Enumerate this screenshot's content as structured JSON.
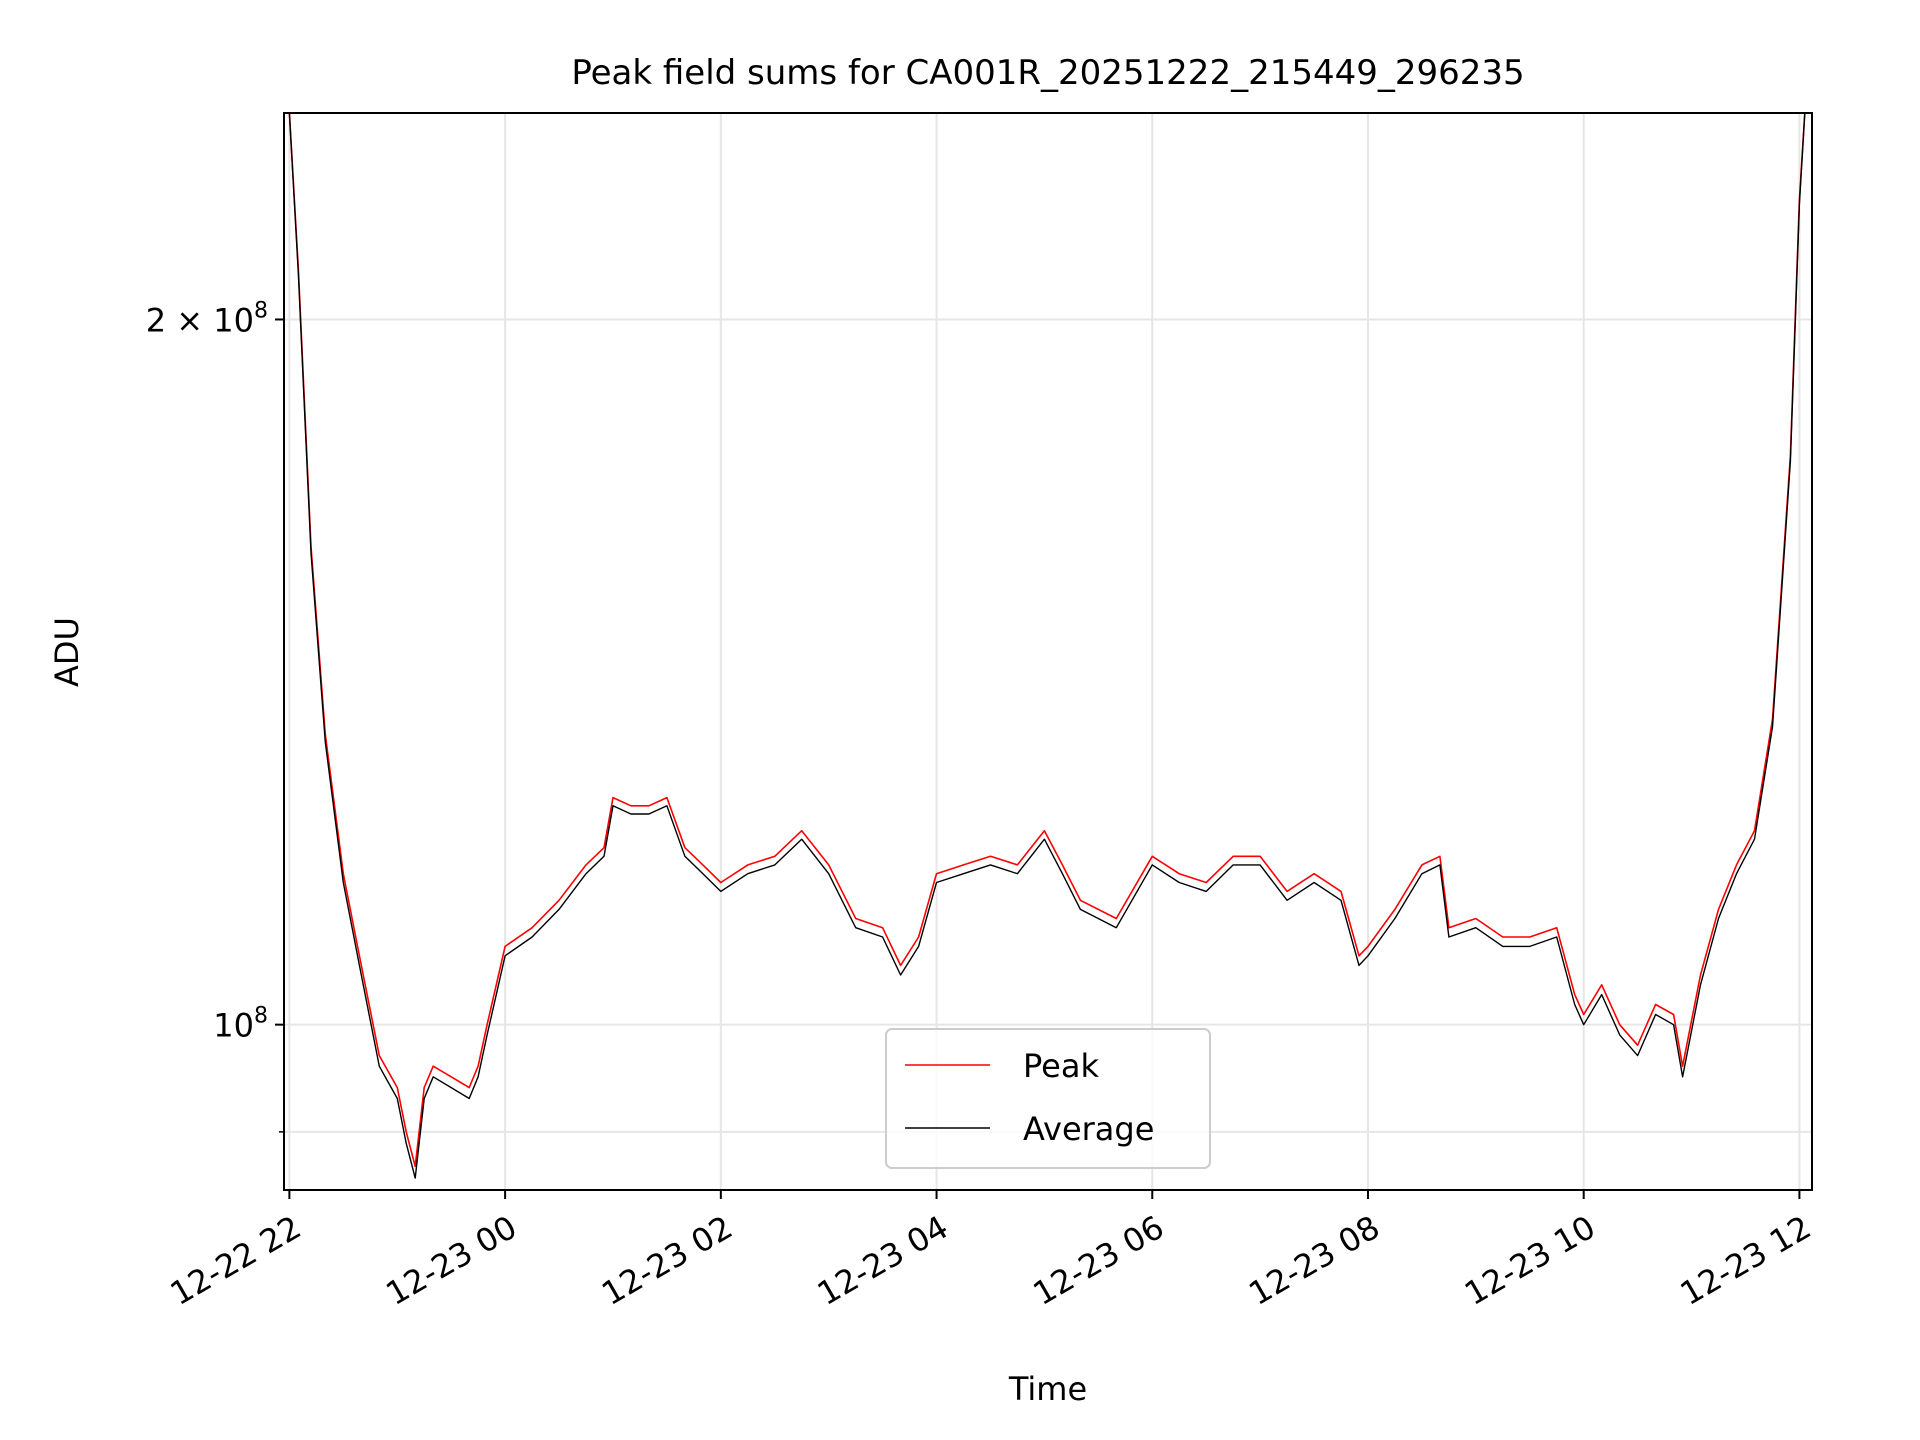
{
  "chart_data": {
    "type": "line",
    "title": "Peak field sums for CA001R_20251222_215449_296235",
    "xlabel": "Time",
    "ylabel": "ADU",
    "y_scale": "log",
    "ylim": [
      85000000,
      245000000
    ],
    "xlim": [
      "2025-12-22 21:57",
      "2025-12-23 12:07"
    ],
    "x_tick_labels": [
      "12-22 22",
      "12-23 00",
      "12-23 02",
      "12-23 04",
      "12-23 06",
      "12-23 08",
      "12-23 10",
      "12-23 12"
    ],
    "x_tick_values": [
      "2025-12-22 22:00",
      "2025-12-23 00:00",
      "2025-12-23 02:00",
      "2025-12-23 04:00",
      "2025-12-23 06:00",
      "2025-12-23 08:00",
      "2025-12-23 10:00",
      "2025-12-23 12:00"
    ],
    "y_tick_labels": [
      "10",
      "8",
      "2 × 10",
      "8"
    ],
    "y_major_ticks": [
      100000000,
      200000000
    ],
    "y_minor_ticks": [
      90000000
    ],
    "grid": true,
    "legend_position": "bottom-center",
    "series": [
      {
        "name": "Peak",
        "color": "#ff0000",
        "x": [
          "2025-12-22 22:00",
          "2025-12-22 22:05",
          "2025-12-22 22:12",
          "2025-12-22 22:20",
          "2025-12-22 22:30",
          "2025-12-22 22:40",
          "2025-12-22 22:50",
          "2025-12-22 23:00",
          "2025-12-22 23:05",
          "2025-12-22 23:10",
          "2025-12-22 23:15",
          "2025-12-22 23:20",
          "2025-12-22 23:30",
          "2025-12-22 23:40",
          "2025-12-22 23:45",
          "2025-12-22 23:50",
          "2025-12-23 00:00",
          "2025-12-23 00:15",
          "2025-12-23 00:30",
          "2025-12-23 00:45",
          "2025-12-23 00:55",
          "2025-12-23 01:00",
          "2025-12-23 01:10",
          "2025-12-23 01:20",
          "2025-12-23 01:30",
          "2025-12-23 01:40",
          "2025-12-23 01:50",
          "2025-12-23 02:00",
          "2025-12-23 02:15",
          "2025-12-23 02:30",
          "2025-12-23 02:45",
          "2025-12-23 03:00",
          "2025-12-23 03:15",
          "2025-12-23 03:30",
          "2025-12-23 03:40",
          "2025-12-23 03:50",
          "2025-12-23 04:00",
          "2025-12-23 04:15",
          "2025-12-23 04:30",
          "2025-12-23 04:45",
          "2025-12-23 05:00",
          "2025-12-23 05:10",
          "2025-12-23 05:20",
          "2025-12-23 05:40",
          "2025-12-23 06:00",
          "2025-12-23 06:15",
          "2025-12-23 06:30",
          "2025-12-23 06:45",
          "2025-12-23 07:00",
          "2025-12-23 07:15",
          "2025-12-23 07:30",
          "2025-12-23 07:45",
          "2025-12-23 07:55",
          "2025-12-23 08:00",
          "2025-12-23 08:15",
          "2025-12-23 08:30",
          "2025-12-23 08:40",
          "2025-12-23 08:45",
          "2025-12-23 09:00",
          "2025-12-23 09:15",
          "2025-12-23 09:30",
          "2025-12-23 09:45",
          "2025-12-23 09:55",
          "2025-12-23 10:00",
          "2025-12-23 10:10",
          "2025-12-23 10:20",
          "2025-12-23 10:30",
          "2025-12-23 10:40",
          "2025-12-23 10:50",
          "2025-12-23 10:55",
          "2025-12-23 11:05",
          "2025-12-23 11:15",
          "2025-12-23 11:25",
          "2025-12-23 11:35",
          "2025-12-23 11:45",
          "2025-12-23 11:55",
          "2025-12-23 12:00",
          "2025-12-23 12:03"
        ],
        "values": [
          245000000,
          210000000,
          160000000,
          133000000,
          116000000,
          106000000,
          97000000,
          94000000,
          90000000,
          87000000,
          94000000,
          96000000,
          95000000,
          94000000,
          96000000,
          100000000,
          108000000,
          110000000,
          113000000,
          117000000,
          119000000,
          125000000,
          124000000,
          124000000,
          125000000,
          119000000,
          117000000,
          115000000,
          117000000,
          118000000,
          121000000,
          117000000,
          111000000,
          110000000,
          106000000,
          109000000,
          116000000,
          117000000,
          118000000,
          117000000,
          121000000,
          117000000,
          113000000,
          111000000,
          118000000,
          116000000,
          115000000,
          118000000,
          118000000,
          114000000,
          116000000,
          114000000,
          107000000,
          108000000,
          112000000,
          117000000,
          118000000,
          110000000,
          111000000,
          109000000,
          109000000,
          110000000,
          103000000,
          101000000,
          104000000,
          100000000,
          98000000,
          102000000,
          101000000,
          96000000,
          105000000,
          112000000,
          117000000,
          121000000,
          135000000,
          175000000,
          225000000,
          245000000
        ]
      },
      {
        "name": "Average",
        "color": "#000000",
        "x": [
          "2025-12-22 22:00",
          "2025-12-22 22:05",
          "2025-12-22 22:12",
          "2025-12-22 22:20",
          "2025-12-22 22:30",
          "2025-12-22 22:40",
          "2025-12-22 22:50",
          "2025-12-22 23:00",
          "2025-12-22 23:05",
          "2025-12-22 23:10",
          "2025-12-22 23:15",
          "2025-12-22 23:20",
          "2025-12-22 23:30",
          "2025-12-22 23:40",
          "2025-12-22 23:45",
          "2025-12-22 23:50",
          "2025-12-23 00:00",
          "2025-12-23 00:15",
          "2025-12-23 00:30",
          "2025-12-23 00:45",
          "2025-12-23 00:55",
          "2025-12-23 01:00",
          "2025-12-23 01:10",
          "2025-12-23 01:20",
          "2025-12-23 01:30",
          "2025-12-23 01:40",
          "2025-12-23 01:50",
          "2025-12-23 02:00",
          "2025-12-23 02:15",
          "2025-12-23 02:30",
          "2025-12-23 02:45",
          "2025-12-23 03:00",
          "2025-12-23 03:15",
          "2025-12-23 03:30",
          "2025-12-23 03:40",
          "2025-12-23 03:50",
          "2025-12-23 04:00",
          "2025-12-23 04:15",
          "2025-12-23 04:30",
          "2025-12-23 04:45",
          "2025-12-23 05:00",
          "2025-12-23 05:10",
          "2025-12-23 05:20",
          "2025-12-23 05:40",
          "2025-12-23 06:00",
          "2025-12-23 06:15",
          "2025-12-23 06:30",
          "2025-12-23 06:45",
          "2025-12-23 07:00",
          "2025-12-23 07:15",
          "2025-12-23 07:30",
          "2025-12-23 07:45",
          "2025-12-23 07:55",
          "2025-12-23 08:00",
          "2025-12-23 08:15",
          "2025-12-23 08:30",
          "2025-12-23 08:40",
          "2025-12-23 08:45",
          "2025-12-23 09:00",
          "2025-12-23 09:15",
          "2025-12-23 09:30",
          "2025-12-23 09:45",
          "2025-12-23 09:55",
          "2025-12-23 10:00",
          "2025-12-23 10:10",
          "2025-12-23 10:20",
          "2025-12-23 10:30",
          "2025-12-23 10:40",
          "2025-12-23 10:50",
          "2025-12-23 10:55",
          "2025-12-23 11:05",
          "2025-12-23 11:15",
          "2025-12-23 11:25",
          "2025-12-23 11:35",
          "2025-12-23 11:45",
          "2025-12-23 11:55",
          "2025-12-23 12:00",
          "2025-12-23 12:03"
        ],
        "values": [
          245000000,
          209000000,
          159000000,
          132000000,
          115000000,
          105000000,
          96000000,
          93000000,
          89000000,
          86000000,
          93000000,
          95000000,
          94000000,
          93000000,
          95000000,
          99000000,
          107000000,
          109000000,
          112000000,
          116000000,
          118000000,
          124000000,
          123000000,
          123000000,
          124000000,
          118000000,
          116000000,
          114000000,
          116000000,
          117000000,
          120000000,
          116000000,
          110000000,
          109000000,
          105000000,
          108000000,
          115000000,
          116000000,
          117000000,
          116000000,
          120000000,
          116000000,
          112000000,
          110000000,
          117000000,
          115000000,
          114000000,
          117000000,
          117000000,
          113000000,
          115000000,
          113000000,
          106000000,
          107000000,
          111000000,
          116000000,
          117000000,
          109000000,
          110000000,
          108000000,
          108000000,
          109000000,
          102000000,
          100000000,
          103000000,
          99000000,
          97000000,
          101000000,
          100000000,
          95000000,
          104000000,
          111000000,
          116000000,
          120000000,
          134000000,
          174000000,
          224000000,
          245000000
        ]
      }
    ]
  }
}
